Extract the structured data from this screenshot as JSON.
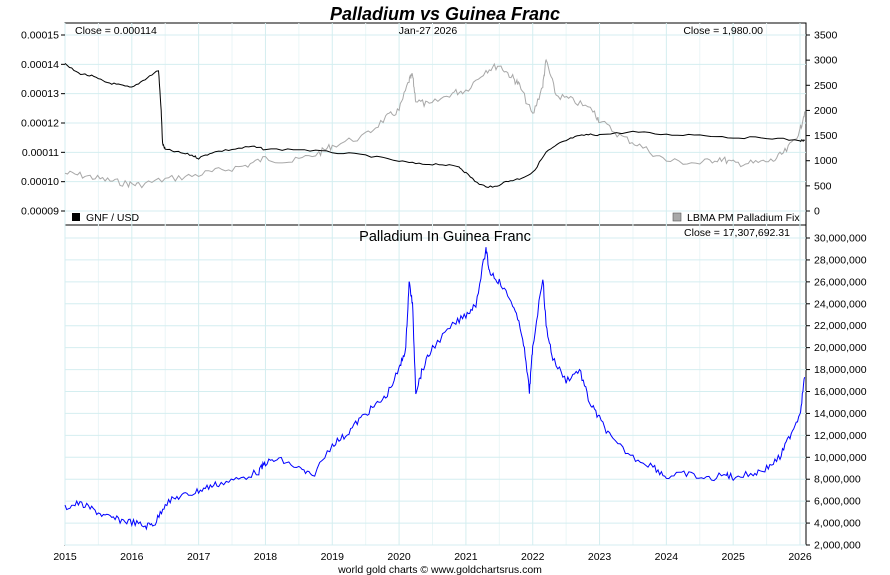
{
  "title": "Palladium vs Guinea Franc",
  "footer": "world gold charts © www.goldchartsrus.com",
  "colors": {
    "title": "#0000ff",
    "gnf_line": "#000000",
    "palladium_line": "#a8a8a8",
    "ratio_line": "#0000ff",
    "grid": "#d4eef0"
  },
  "top_panel": {
    "close_left": "Close = 0.000114",
    "date": "Jan-27  2026",
    "close_right": "Close = 1,980.00",
    "legend_left": "GNF / USD",
    "legend_right": "LBMA PM Palladium Fix"
  },
  "bottom_panel": {
    "title": "Palladium In Guinea Franc",
    "close": "Close = 17,307,692.31"
  },
  "chart_data": [
    {
      "type": "line",
      "title": "Palladium vs Guinea Franc",
      "x_ticks": [
        "2015",
        "2016",
        "2017",
        "2018",
        "2019",
        "2020",
        "2021",
        "2022",
        "2023",
        "2024",
        "2025",
        "2026"
      ],
      "y_left_ticks": [
        "0.00015",
        "0.00014",
        "0.00013",
        "0.00012",
        "0.00011",
        "0.00010",
        "0.00009"
      ],
      "y_left_range": [
        8.7e-05,
        0.000152
      ],
      "y_right_ticks": [
        "3500",
        "3000",
        "2500",
        "2000",
        "1500",
        "1000",
        "500",
        "0"
      ],
      "y_right_range": [
        0,
        3500
      ],
      "grid": true,
      "series": [
        {
          "name": "GNF / USD",
          "axis": "left",
          "x": [
            2015.0,
            2015.2,
            2015.4,
            2015.6,
            2015.8,
            2016.0,
            2016.2,
            2016.4,
            2016.44,
            2016.46,
            2016.5,
            2016.7,
            2016.9,
            2017.0,
            2017.2,
            2017.5,
            2017.8,
            2018.0,
            2018.5,
            2019.0,
            2019.5,
            2020.0,
            2020.3,
            2020.6,
            2020.9,
            2021.0,
            2021.2,
            2021.4,
            2021.6,
            2021.8,
            2022.0,
            2022.2,
            2022.4,
            2022.6,
            2022.8,
            2023.0,
            2023.5,
            2024.0,
            2024.5,
            2025.0,
            2025.5,
            2026.0,
            2026.07
          ],
          "y": [
            0.00014,
            0.000137,
            0.000136,
            0.000134,
            0.000133,
            0.000132,
            0.000135,
            0.000138,
            0.000124,
            0.000113,
            0.000111,
            0.00011,
            0.000109,
            0.000108,
            0.00011,
            0.000111,
            0.000112,
            0.000111,
            0.000111,
            0.00011,
            0.000109,
            0.000107,
            0.000106,
            0.000106,
            0.000105,
            0.000103,
            9.9e-05,
            9.8e-05,
            0.0001,
            0.000101,
            0.000103,
            0.00011,
            0.000113,
            0.000115,
            0.000116,
            0.000116,
            0.000117,
            0.000116,
            0.000116,
            0.000115,
            0.000115,
            0.000114,
            0.000114
          ]
        },
        {
          "name": "LBMA PM Palladium Fix",
          "axis": "right",
          "x": [
            2015.0,
            2015.3,
            2015.6,
            2015.9,
            2016.1,
            2016.5,
            2016.9,
            2017.3,
            2017.7,
            2018.0,
            2018.4,
            2018.8,
            2019.0,
            2019.5,
            2019.8,
            2020.0,
            2020.15,
            2020.2,
            2020.25,
            2020.45,
            2020.8,
            2021.0,
            2021.3,
            2021.5,
            2021.7,
            2021.8,
            2022.0,
            2022.15,
            2022.2,
            2022.35,
            2022.6,
            2022.9,
            2023.0,
            2023.3,
            2023.6,
            2024.0,
            2024.5,
            2024.8,
            2025.0,
            2025.3,
            2025.6,
            2025.8,
            2026.0,
            2026.07
          ],
          "y": [
            750,
            700,
            620,
            550,
            520,
            630,
            700,
            800,
            900,
            1050,
            980,
            1150,
            1300,
            1500,
            1850,
            2000,
            2600,
            2700,
            2200,
            2100,
            2350,
            2400,
            2800,
            2900,
            2650,
            2500,
            1900,
            2500,
            3000,
            2300,
            2200,
            2000,
            1800,
            1500,
            1300,
            1000,
            950,
            1050,
            950,
            950,
            1000,
            1200,
            1600,
            1980
          ]
        }
      ]
    },
    {
      "type": "line",
      "title": "Palladium In Guinea Franc",
      "x_ticks": [
        "2015",
        "2016",
        "2017",
        "2018",
        "2019",
        "2020",
        "2021",
        "2022",
        "2023",
        "2024",
        "2025",
        "2026"
      ],
      "y_ticks": [
        "30,000,000",
        "28,000,000",
        "26,000,000",
        "24,000,000",
        "22,000,000",
        "20,000,000",
        "18,000,000",
        "16,000,000",
        "14,000,000",
        "12,000,000",
        "10,000,000",
        "8,000,000",
        "6,000,000",
        "4,000,000",
        "2,000,000"
      ],
      "y_range": [
        2000000,
        30000000
      ],
      "grid": true,
      "series": [
        {
          "x": [
            2015.0,
            2015.2,
            2015.4,
            2015.6,
            2015.8,
            2016.0,
            2016.2,
            2016.35,
            2016.5,
            2016.7,
            2016.9,
            2017.1,
            2017.3,
            2017.6,
            2017.9,
            2018.0,
            2018.2,
            2018.5,
            2018.7,
            2019.0,
            2019.2,
            2019.4,
            2019.6,
            2019.8,
            2020.0,
            2020.1,
            2020.15,
            2020.2,
            2020.25,
            2020.35,
            2020.5,
            2020.8,
            2021.0,
            2021.15,
            2021.3,
            2021.35,
            2021.5,
            2021.7,
            2021.85,
            2021.95,
            2022.0,
            2022.15,
            2022.2,
            2022.3,
            2022.5,
            2022.7,
            2022.85,
            2023.0,
            2023.2,
            2023.5,
            2023.8,
            2024.0,
            2024.3,
            2024.6,
            2024.9,
            2025.0,
            2025.3,
            2025.5,
            2025.7,
            2025.85,
            2026.0,
            2026.07
          ],
          "y": [
            5400000,
            5800000,
            5300000,
            4600000,
            4300000,
            4100000,
            3700000,
            4000000,
            5800000,
            6400000,
            6700000,
            7200000,
            7600000,
            8000000,
            8700000,
            9500000,
            9800000,
            9000000,
            8200000,
            11200000,
            12000000,
            13400000,
            14500000,
            15500000,
            18000000,
            20000000,
            26000000,
            24000000,
            16000000,
            18000000,
            20000000,
            22000000,
            23000000,
            24000000,
            29000000,
            27000000,
            26000000,
            24000000,
            21000000,
            16000000,
            20000000,
            26500000,
            22000000,
            19000000,
            17000000,
            18000000,
            15000000,
            13500000,
            11500000,
            10000000,
            9200000,
            8200000,
            8500000,
            8000000,
            8400000,
            8200000,
            8500000,
            9000000,
            10000000,
            12000000,
            14000000,
            17300000
          ]
        }
      ]
    }
  ]
}
